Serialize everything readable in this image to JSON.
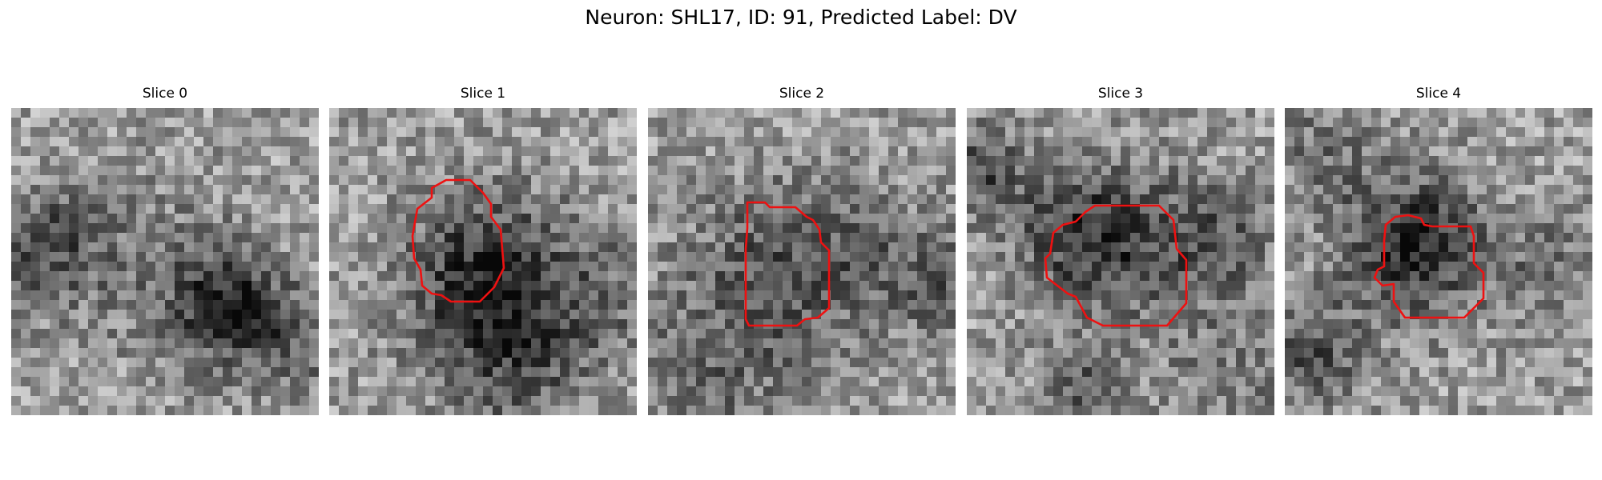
{
  "figure": {
    "title": "Neuron: SHL17, ID: 91, Predicted Label: DV"
  },
  "colors": {
    "contour": "#ee1111",
    "colormap": "gray"
  },
  "panels": [
    {
      "title": "Slice 0",
      "has_contour": false
    },
    {
      "title": "Slice 1",
      "has_contour": true
    },
    {
      "title": "Slice 2",
      "has_contour": true
    },
    {
      "title": "Slice 3",
      "has_contour": true
    },
    {
      "title": "Slice 4",
      "has_contour": true
    }
  ]
}
